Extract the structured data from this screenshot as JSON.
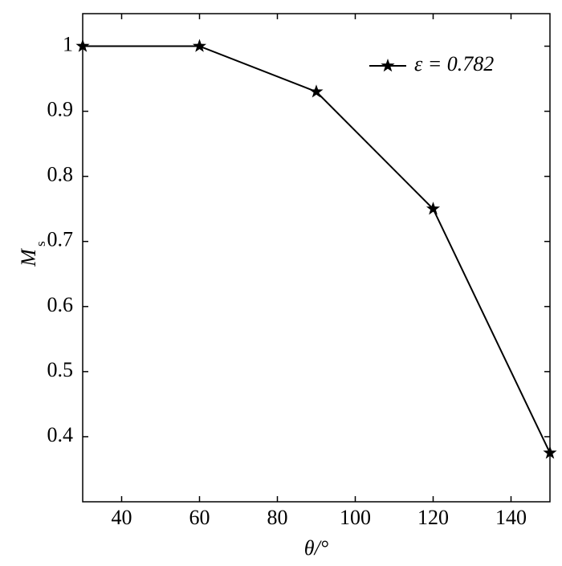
{
  "chart_data": {
    "type": "line",
    "xlabel": "θ/°",
    "ylabel": "M",
    "ylabel_subscript": "s",
    "x": [
      30,
      60,
      90,
      120,
      150
    ],
    "series": [
      {
        "name": "ε = 0.782",
        "color": "#000000",
        "values": [
          1,
          1,
          0.93,
          0.75,
          0.375
        ]
      }
    ],
    "xlim": [
      30,
      150
    ],
    "xticks": [
      40,
      60,
      80,
      100,
      120,
      140
    ],
    "ylim": [
      0.3,
      1.05
    ],
    "yticks": [
      0.4,
      0.5,
      0.6,
      0.7,
      0.8,
      0.9,
      1
    ],
    "grid": false,
    "legend": "upper right"
  }
}
